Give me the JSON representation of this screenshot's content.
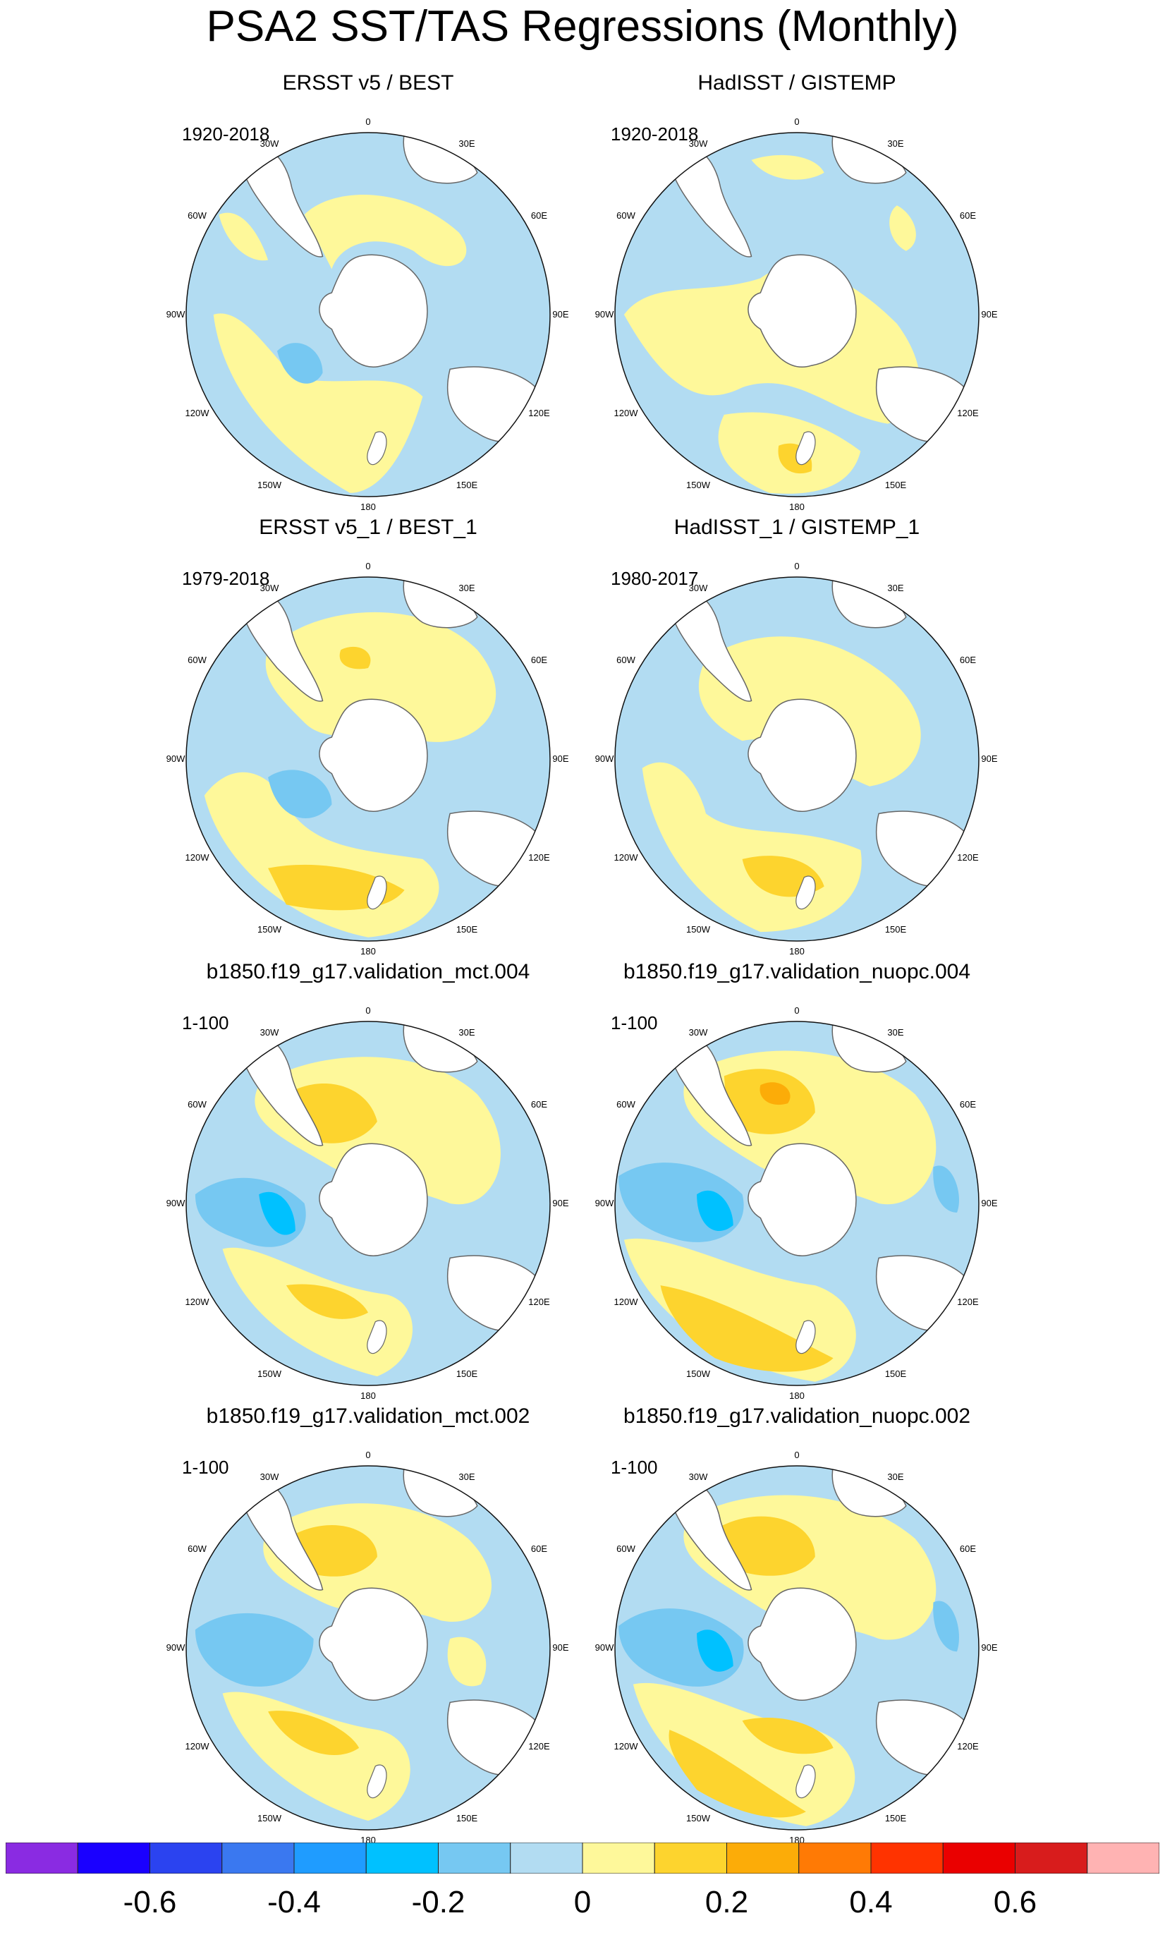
{
  "title": "PSA2 SST/TAS Regressions (Monthly)",
  "lon_labels": [
    "0",
    "30E",
    "60E",
    "90E",
    "120E",
    "150E",
    "180",
    "150W",
    "120W",
    "90W",
    "60W",
    "30W"
  ],
  "panels": [
    {
      "title": "ERSST v5 / BEST",
      "period": "1920-2018"
    },
    {
      "title": "HadISST / GISTEMP",
      "period": "1920-2018"
    },
    {
      "title": "ERSST v5_1 / BEST_1",
      "period": "1979-2018"
    },
    {
      "title": "HadISST_1 / GISTEMP_1",
      "period": "1980-2017"
    },
    {
      "title": "b1850.f19_g17.validation_mct.004",
      "period": "1-100"
    },
    {
      "title": "b1850.f19_g17.validation_nuopc.004",
      "period": "1-100"
    },
    {
      "title": "b1850.f19_g17.validation_mct.002",
      "period": "1-100"
    },
    {
      "title": "b1850.f19_g17.validation_nuopc.002",
      "period": "1-100"
    }
  ],
  "colorbar": {
    "colors": [
      "#8a2be2",
      "#1a00ff",
      "#2b43f0",
      "#3a78f0",
      "#1f9cff",
      "#00c1ff",
      "#76c8f2",
      "#b2dcf2",
      "#fef89a",
      "#fdd42e",
      "#fcac08",
      "#ff7a05",
      "#ff3300",
      "#ea0000",
      "#d81c1c",
      "#ffb3b3"
    ],
    "tick_labels": [
      "-0.6",
      "-0.4",
      "-0.2",
      "0",
      "0.2",
      "0.4",
      "0.6"
    ]
  },
  "colors": {
    "land": "#ffffff",
    "neutral_negative": "#b2dcf2",
    "neutral_positive": "#fef89a"
  }
}
